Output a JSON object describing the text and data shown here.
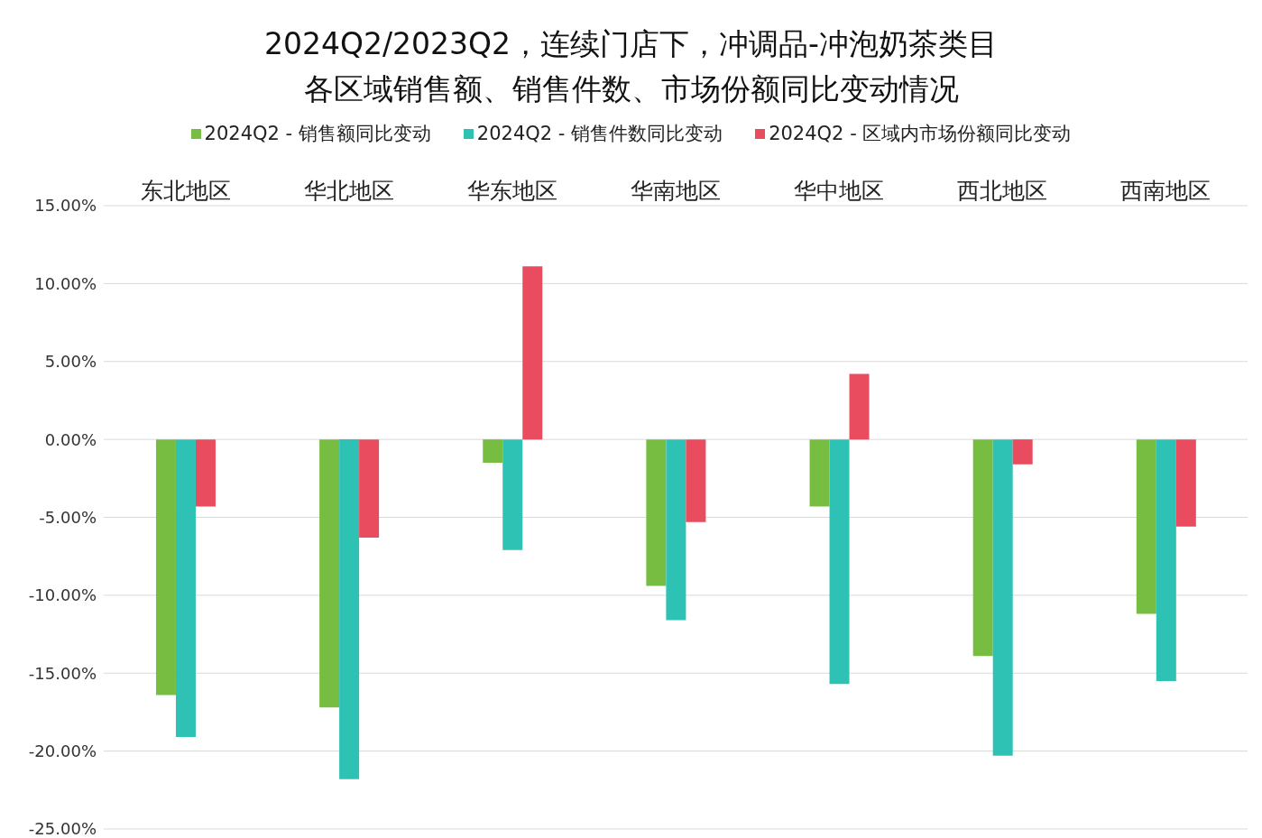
{
  "chart_data": {
    "type": "bar",
    "title": "2024Q2/2023Q2，连续门店下，冲调品-冲泡奶茶类目",
    "subtitle": "各区域销售额、销售件数、市场份额同比变动情况",
    "categories": [
      "东北地区",
      "华北地区",
      "华东地区",
      "华南地区",
      "华中地区",
      "西北地区",
      "西南地区"
    ],
    "series": [
      {
        "name": "2024Q2 - 销售额同比变动",
        "color": "#77bd41",
        "values": [
          -16.4,
          -17.2,
          -1.5,
          -9.4,
          -4.3,
          -13.9,
          -11.2
        ]
      },
      {
        "name": "2024Q2 - 销售件数同比变动",
        "color": "#2ec2b5",
        "values": [
          -19.1,
          -21.8,
          -7.1,
          -11.6,
          -15.7,
          -20.3,
          -15.5
        ]
      },
      {
        "name": "2024Q2 - 区域内市场份额同比变动",
        "color": "#e84c5e",
        "values": [
          -4.3,
          -6.3,
          11.1,
          -5.3,
          4.2,
          -1.6,
          -5.6
        ]
      }
    ],
    "ylim": [
      -25,
      15
    ],
    "yticks": [
      {
        "value": -25,
        "label": "-25.00%"
      },
      {
        "value": -20,
        "label": "-20.00%"
      },
      {
        "value": -15,
        "label": "-15.00%"
      },
      {
        "value": -10,
        "label": "-10.00%"
      },
      {
        "value": -5,
        "label": "-5.00%"
      },
      {
        "value": 0,
        "label": "0.00%"
      },
      {
        "value": 5,
        "label": "5.00%"
      },
      {
        "value": 10,
        "label": "10.00%"
      },
      {
        "value": 15,
        "label": "15.00%"
      }
    ],
    "grid": "y",
    "legend": "top"
  }
}
